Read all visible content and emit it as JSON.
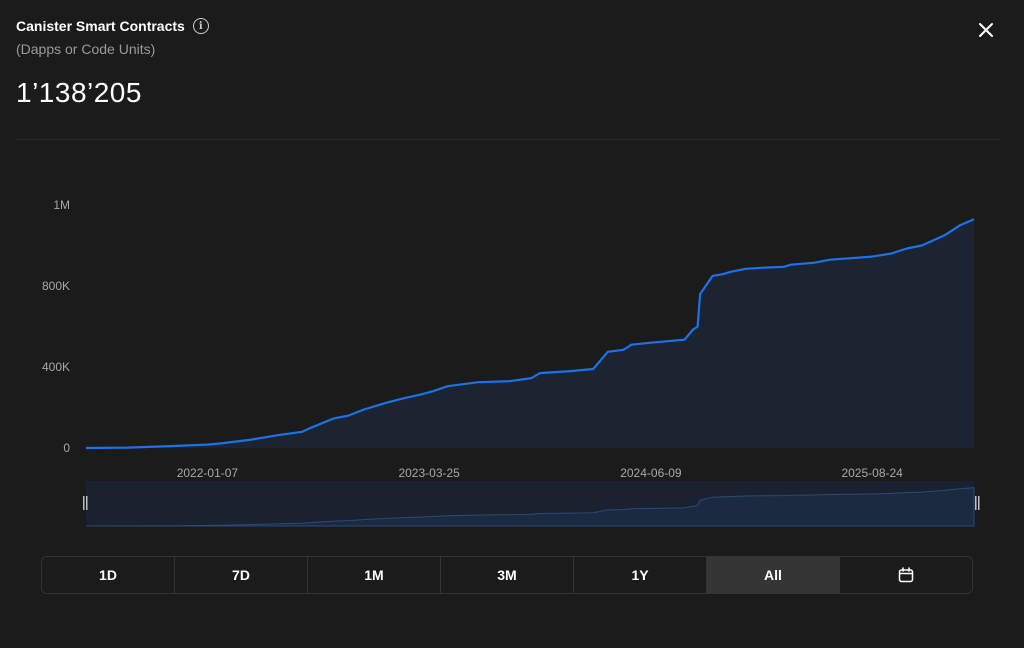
{
  "header": {
    "title": "Canister Smart Contracts",
    "subtitle": "(Dapps or Code Units)",
    "value": "1’138’205",
    "info_icon": "info-icon",
    "close_icon": "close-icon"
  },
  "colors": {
    "background": "#1b1b1b",
    "line": "#1a73e8",
    "area": "#1c2331",
    "navigator_fill": "#1b2a40",
    "active_button": "#353535"
  },
  "range_buttons": [
    {
      "label": "1D",
      "active": false
    },
    {
      "label": "7D",
      "active": false
    },
    {
      "label": "1M",
      "active": false
    },
    {
      "label": "3M",
      "active": false
    },
    {
      "label": "1Y",
      "active": false
    },
    {
      "label": "All",
      "active": true
    },
    {
      "label": "",
      "icon": "calendar-icon",
      "active": false
    }
  ],
  "chart_data": {
    "type": "area",
    "title": "",
    "xlabel": "",
    "ylabel": "",
    "x_tick_labels": [
      "2022-01-07",
      "2023-03-25",
      "2024-06-09",
      "2025-08-24"
    ],
    "y_tick_labels": [
      "0",
      "400K",
      "800K",
      "1M"
    ],
    "ylim": [
      0,
      1200000
    ],
    "grid": false,
    "legend": "none",
    "series": [
      {
        "x": [
          "2021-05-10",
          "2021-08-01",
          "2021-11-01",
          "2022-01-07",
          "2022-02-01",
          "2022-04-01",
          "2022-06-01",
          "2022-07-15",
          "2022-08-01",
          "2022-09-15",
          "2022-10-15",
          "2022-11-15",
          "2023-01-01",
          "2023-02-01",
          "2023-03-10",
          "2023-04-01",
          "2023-05-01",
          "2023-07-01",
          "2023-09-01",
          "2023-10-15",
          "2023-11-01",
          "2024-01-01",
          "2024-02-15",
          "2024-03-15",
          "2024-04-15",
          "2024-04-25",
          "2024-05-01",
          "2024-06-09",
          "2024-07-01",
          "2024-08-15",
          "2024-09-01",
          "2024-09-10",
          "2024-09-15",
          "2024-10-10",
          "2024-11-01",
          "2024-11-15",
          "2024-12-15",
          "2025-01-15",
          "2025-03-01",
          "2025-03-15",
          "2025-05-01",
          "2025-06-01",
          "2025-08-24",
          "2025-10-01",
          "2025-11-01",
          "2025-12-01",
          "2026-01-15",
          "2026-02-15",
          "2026-03-15"
        ],
        "values": [
          0,
          2000,
          10000,
          17000,
          22000,
          40000,
          65000,
          80000,
          100000,
          145000,
          160000,
          190000,
          225000,
          245000,
          265000,
          280000,
          305000,
          325000,
          330000,
          345000,
          370000,
          380000,
          390000,
          475000,
          485000,
          500000,
          510000,
          520000,
          525000,
          535000,
          585000,
          600000,
          760000,
          850000,
          860000,
          870000,
          885000,
          890000,
          895000,
          905000,
          915000,
          930000,
          945000,
          960000,
          985000,
          1000000,
          1050000,
          1100000,
          1130000
        ]
      }
    ]
  },
  "navigator": {
    "left_handle": "drag-handle-left",
    "right_handle": "drag-handle-right"
  }
}
